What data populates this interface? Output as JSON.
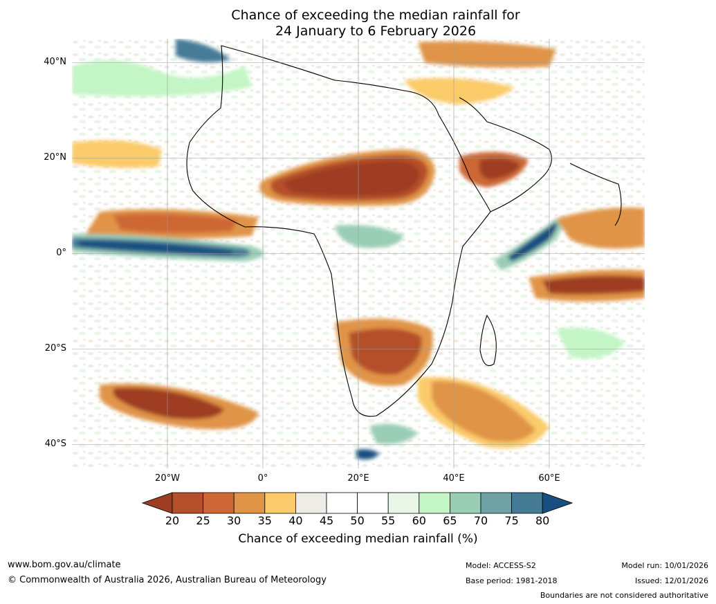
{
  "title": {
    "line1": "Chance of exceeding the median rainfall for",
    "line2": "24 January to 6 February 2026"
  },
  "map": {
    "lat_labels": [
      "40°N",
      "20°N",
      "0°",
      "20°S",
      "40°S"
    ],
    "lon_labels": [
      "20°W",
      "0°",
      "20°E",
      "40°E",
      "60°E"
    ],
    "lon_range": [
      -40,
      80
    ],
    "lat_range": [
      -45,
      45
    ]
  },
  "colorbar": {
    "ticks": [
      "20",
      "25",
      "30",
      "35",
      "40",
      "45",
      "50",
      "55",
      "60",
      "65",
      "70",
      "75",
      "80"
    ],
    "colors": [
      "#9e3d22",
      "#b5502a",
      "#cd6836",
      "#e09446",
      "#fbcb6b",
      "#eeece6",
      "#ffffff",
      "#ffffff",
      "#e8f6e8",
      "#c3f5c5",
      "#9acdb5",
      "#6fa2a4",
      "#467b96",
      "#184f80"
    ],
    "label": "Chance of exceeding median rainfall (%)"
  },
  "footer": {
    "website": "www.bom.gov.au/climate",
    "copyright": "© Commonwealth of Australia 2026, Australian Bureau of Meteorology",
    "model": "Model: ACCESS-S2",
    "base_period": "Base period: 1981-2018",
    "model_run": "Model run: 10/01/2026",
    "issued": "Issued: 12/01/2026",
    "disclaimer": "Boundaries are not considered authoritative"
  }
}
